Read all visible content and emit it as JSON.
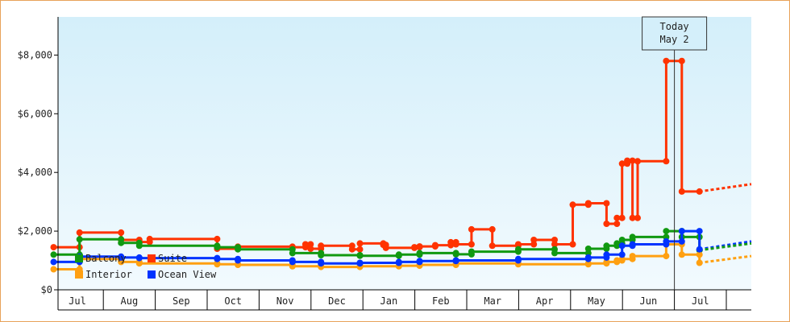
{
  "chart_data": {
    "type": "line",
    "ylim": [
      0,
      9300
    ],
    "yticks": [
      {
        "value": 0,
        "label": "$0"
      },
      {
        "value": 2000,
        "label": "$2,000"
      },
      {
        "value": 4000,
        "label": "$4,000"
      },
      {
        "value": 6000,
        "label": "$6,000"
      },
      {
        "value": 8000,
        "label": "$8,000"
      }
    ],
    "months": [
      "Jul",
      "Aug",
      "Sep",
      "Oct",
      "Nov",
      "Dec",
      "Jan",
      "Feb",
      "Mar",
      "Apr",
      "May",
      "Jun",
      "Jul"
    ],
    "today_label": [
      "Today",
      "May 2"
    ],
    "series": [
      {
        "name": "Suite",
        "color": "#ff3300",
        "values": [
          [
            -0.45,
            1450
          ],
          [
            0.05,
            1450
          ],
          [
            0.05,
            1950
          ],
          [
            0.85,
            1950
          ],
          [
            0.85,
            1700
          ],
          [
            1.2,
            1700
          ],
          [
            1.2,
            1630
          ],
          [
            1.4,
            1630
          ],
          [
            1.4,
            1730
          ],
          [
            2.7,
            1730
          ],
          [
            2.7,
            1400
          ],
          [
            3.1,
            1400
          ],
          [
            3.1,
            1470
          ],
          [
            4.15,
            1470
          ],
          [
            4.15,
            1450
          ],
          [
            4.4,
            1450
          ],
          [
            4.4,
            1550
          ],
          [
            4.5,
            1550
          ],
          [
            4.5,
            1400
          ],
          [
            4.7,
            1400
          ],
          [
            4.7,
            1500
          ],
          [
            5.3,
            1500
          ],
          [
            5.3,
            1380
          ],
          [
            5.45,
            1380
          ],
          [
            5.45,
            1580
          ],
          [
            5.9,
            1580
          ],
          [
            5.9,
            1530
          ],
          [
            5.95,
            1530
          ],
          [
            5.95,
            1430
          ],
          [
            6.5,
            1430
          ],
          [
            6.5,
            1450
          ],
          [
            6.6,
            1450
          ],
          [
            6.6,
            1480
          ],
          [
            6.9,
            1480
          ],
          [
            6.9,
            1520
          ],
          [
            7.2,
            1520
          ],
          [
            7.2,
            1620
          ],
          [
            7.3,
            1620
          ],
          [
            7.3,
            1550
          ],
          [
            7.6,
            1550
          ],
          [
            7.6,
            2060
          ],
          [
            8.0,
            2060
          ],
          [
            8.0,
            1500
          ],
          [
            8.5,
            1500
          ],
          [
            8.5,
            1550
          ],
          [
            8.8,
            1550
          ],
          [
            8.8,
            1700
          ],
          [
            9.2,
            1700
          ],
          [
            9.2,
            1550
          ],
          [
            9.55,
            1550
          ],
          [
            9.55,
            2900
          ],
          [
            9.85,
            2900
          ],
          [
            9.85,
            2950
          ],
          [
            10.2,
            2950
          ],
          [
            10.2,
            2250
          ],
          [
            10.4,
            2250
          ],
          [
            10.4,
            2450
          ],
          [
            10.5,
            2450
          ],
          [
            10.5,
            4300
          ],
          [
            10.6,
            4300
          ],
          [
            10.6,
            4400
          ],
          [
            10.7,
            4400
          ],
          [
            10.7,
            2450
          ],
          [
            10.8,
            2450
          ],
          [
            10.8,
            4380
          ],
          [
            11.35,
            4380
          ],
          [
            11.35,
            7800
          ],
          [
            11.65,
            7800
          ],
          [
            11.65,
            3350
          ],
          [
            11.99,
            3350
          ]
        ]
      },
      {
        "name": "Balcony",
        "color": "#119911",
        "values": [
          [
            -0.45,
            1200
          ],
          [
            0.05,
            1200
          ],
          [
            0.05,
            1720
          ],
          [
            0.85,
            1720
          ],
          [
            0.85,
            1600
          ],
          [
            1.2,
            1600
          ],
          [
            1.2,
            1500
          ],
          [
            2.7,
            1500
          ],
          [
            2.7,
            1450
          ],
          [
            3.1,
            1450
          ],
          [
            3.1,
            1380
          ],
          [
            4.15,
            1380
          ],
          [
            4.15,
            1250
          ],
          [
            4.7,
            1250
          ],
          [
            4.7,
            1180
          ],
          [
            5.45,
            1180
          ],
          [
            5.45,
            1160
          ],
          [
            6.2,
            1160
          ],
          [
            6.2,
            1200
          ],
          [
            6.6,
            1200
          ],
          [
            6.6,
            1250
          ],
          [
            7.3,
            1250
          ],
          [
            7.3,
            1210
          ],
          [
            7.6,
            1210
          ],
          [
            7.6,
            1300
          ],
          [
            8.5,
            1300
          ],
          [
            8.5,
            1380
          ],
          [
            9.2,
            1380
          ],
          [
            9.2,
            1250
          ],
          [
            9.85,
            1250
          ],
          [
            9.85,
            1400
          ],
          [
            10.2,
            1400
          ],
          [
            10.2,
            1500
          ],
          [
            10.4,
            1500
          ],
          [
            10.4,
            1580
          ],
          [
            10.5,
            1580
          ],
          [
            10.5,
            1700
          ],
          [
            10.7,
            1700
          ],
          [
            10.7,
            1800
          ],
          [
            11.35,
            1800
          ],
          [
            11.35,
            2000
          ],
          [
            11.65,
            2000
          ],
          [
            11.65,
            1800
          ],
          [
            11.99,
            1800
          ],
          [
            11.99,
            1350
          ]
        ]
      },
      {
        "name": "Interior",
        "color": "#ffa011",
        "values": [
          [
            -0.45,
            700
          ],
          [
            0.05,
            700
          ],
          [
            0.05,
            1050
          ],
          [
            0.85,
            1050
          ],
          [
            0.85,
            950
          ],
          [
            1.2,
            950
          ],
          [
            1.2,
            900
          ],
          [
            2.7,
            900
          ],
          [
            2.7,
            870
          ],
          [
            3.1,
            870
          ],
          [
            3.1,
            850
          ],
          [
            4.15,
            850
          ],
          [
            4.15,
            800
          ],
          [
            4.7,
            800
          ],
          [
            4.7,
            780
          ],
          [
            5.45,
            780
          ],
          [
            5.45,
            800
          ],
          [
            6.2,
            800
          ],
          [
            6.2,
            820
          ],
          [
            6.6,
            820
          ],
          [
            6.6,
            850
          ],
          [
            7.3,
            850
          ],
          [
            7.3,
            900
          ],
          [
            8.5,
            900
          ],
          [
            8.5,
            870
          ],
          [
            9.85,
            870
          ],
          [
            9.85,
            900
          ],
          [
            10.2,
            900
          ],
          [
            10.2,
            950
          ],
          [
            10.4,
            950
          ],
          [
            10.4,
            1000
          ],
          [
            10.5,
            1000
          ],
          [
            10.5,
            1050
          ],
          [
            10.7,
            1050
          ],
          [
            10.7,
            1150
          ],
          [
            11.35,
            1150
          ],
          [
            11.35,
            1550
          ],
          [
            11.65,
            1550
          ],
          [
            11.65,
            1200
          ],
          [
            11.99,
            1200
          ],
          [
            11.99,
            920
          ]
        ]
      },
      {
        "name": "Ocean View",
        "color": "#0033ff",
        "values": [
          [
            -0.45,
            950
          ],
          [
            0.05,
            950
          ],
          [
            0.05,
            1130
          ],
          [
            0.85,
            1130
          ],
          [
            0.85,
            1100
          ],
          [
            1.2,
            1100
          ],
          [
            1.2,
            1080
          ],
          [
            2.7,
            1080
          ],
          [
            2.7,
            1050
          ],
          [
            3.1,
            1050
          ],
          [
            3.1,
            1000
          ],
          [
            4.15,
            1000
          ],
          [
            4.15,
            950
          ],
          [
            4.7,
            950
          ],
          [
            4.7,
            900
          ],
          [
            5.45,
            900
          ],
          [
            5.45,
            920
          ],
          [
            6.2,
            920
          ],
          [
            6.2,
            950
          ],
          [
            6.6,
            950
          ],
          [
            6.6,
            980
          ],
          [
            7.3,
            980
          ],
          [
            7.3,
            1000
          ],
          [
            8.5,
            1000
          ],
          [
            8.5,
            1050
          ],
          [
            9.85,
            1050
          ],
          [
            9.85,
            1100
          ],
          [
            10.2,
            1100
          ],
          [
            10.2,
            1200
          ],
          [
            10.5,
            1200
          ],
          [
            10.5,
            1500
          ],
          [
            10.7,
            1500
          ],
          [
            10.7,
            1550
          ],
          [
            11.35,
            1550
          ],
          [
            11.35,
            1650
          ],
          [
            11.65,
            1650
          ],
          [
            11.65,
            2000
          ],
          [
            11.99,
            2000
          ],
          [
            11.99,
            1380
          ]
        ]
      }
    ],
    "forecast": [
      {
        "name": "Suite",
        "from": [
          11.99,
          3350
        ],
        "to": [
          15.2,
          3600
        ]
      },
      {
        "name": "Ocean View",
        "from": [
          11.99,
          1380
        ],
        "to": [
          15.2,
          1650
        ]
      },
      {
        "name": "Balcony",
        "from": [
          11.99,
          1350
        ],
        "to": [
          15.2,
          1580
        ]
      },
      {
        "name": "Interior",
        "from": [
          11.99,
          920
        ],
        "to": [
          15.2,
          1150
        ]
      }
    ],
    "today_x": 12.0,
    "legend": [
      {
        "label": "Balcony",
        "color": "#119911"
      },
      {
        "label": "Suite",
        "color": "#ff3300"
      },
      {
        "label": "Interior",
        "color": "#ffa011"
      },
      {
        "label": "Ocean View",
        "color": "#0033ff"
      }
    ],
    "background_gradient": [
      "#d4effa",
      "#f2fafe"
    ],
    "grid": false,
    "legend_position": "bottom-left"
  }
}
